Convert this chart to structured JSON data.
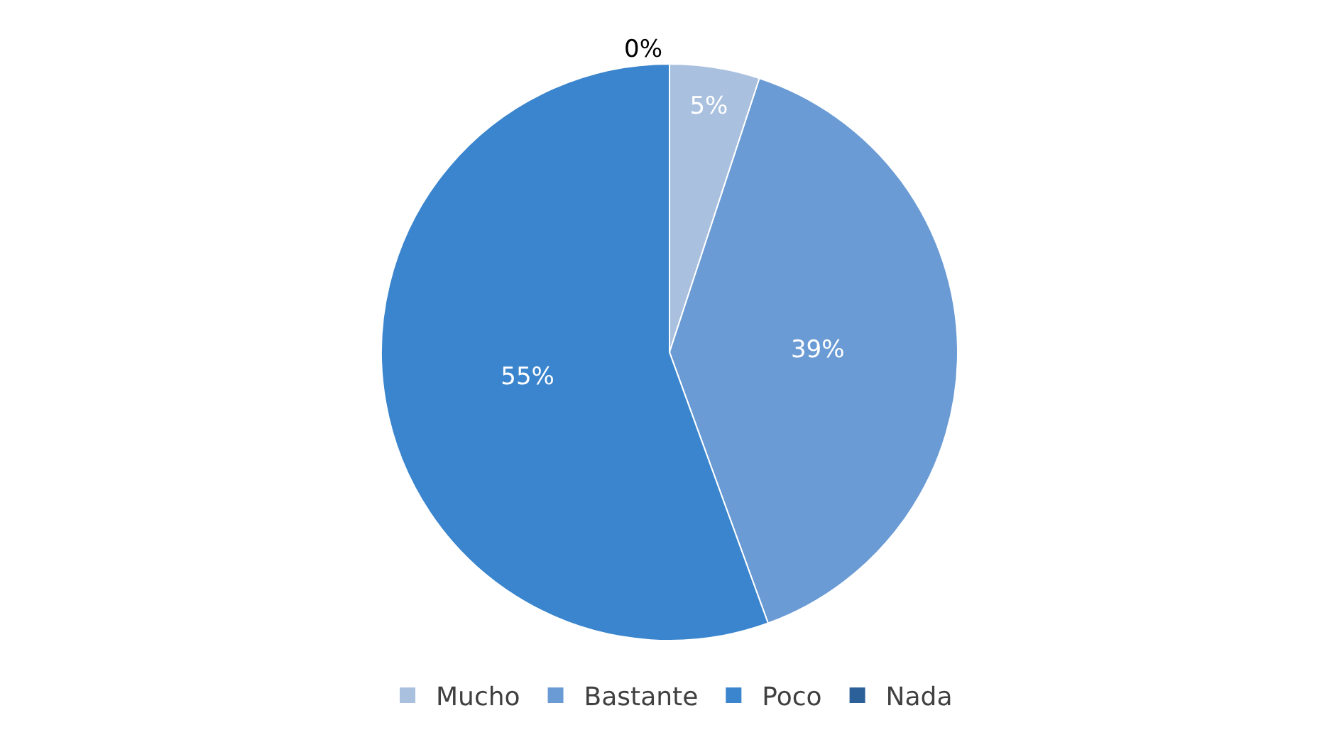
{
  "chart_data": {
    "type": "pie",
    "categories": [
      "Mucho",
      "Bastante",
      "Poco",
      "Nada"
    ],
    "values": [
      5,
      39,
      55,
      0
    ],
    "value_labels": [
      "5%",
      "39%",
      "55%",
      "0%"
    ],
    "colors": [
      "#a9c0df",
      "#6a9bd4",
      "#3a85cd",
      "#2c6098"
    ],
    "legend": "bottom"
  }
}
